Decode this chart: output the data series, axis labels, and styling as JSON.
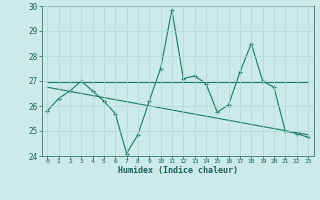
{
  "title": "",
  "xlabel": "Humidex (Indice chaleur)",
  "x": [
    0,
    1,
    2,
    3,
    4,
    5,
    6,
    7,
    8,
    9,
    10,
    11,
    12,
    13,
    14,
    15,
    16,
    17,
    18,
    19,
    20,
    21,
    22,
    23
  ],
  "y_main": [
    25.8,
    26.3,
    26.6,
    27.0,
    26.6,
    26.2,
    25.7,
    24.1,
    24.85,
    26.2,
    27.5,
    29.85,
    27.1,
    27.2,
    26.9,
    25.75,
    26.05,
    27.35,
    28.5,
    27.0,
    26.75,
    25.0,
    24.9,
    24.75
  ],
  "trend1_x": [
    0,
    23
  ],
  "trend1_y": [
    26.95,
    26.95
  ],
  "trend2_x": [
    0,
    23
  ],
  "trend2_y": [
    26.75,
    24.85
  ],
  "ylim": [
    24,
    30
  ],
  "yticks": [
    24,
    25,
    26,
    27,
    28,
    29,
    30
  ],
  "xticks": [
    0,
    1,
    2,
    3,
    4,
    5,
    6,
    7,
    8,
    9,
    10,
    11,
    12,
    13,
    14,
    15,
    16,
    17,
    18,
    19,
    20,
    21,
    22,
    23
  ],
  "line_color": "#1a7a6a",
  "bg_color": "#cceaea",
  "grid_color": "#b0d8d8",
  "font_color": "#1a5f5a"
}
